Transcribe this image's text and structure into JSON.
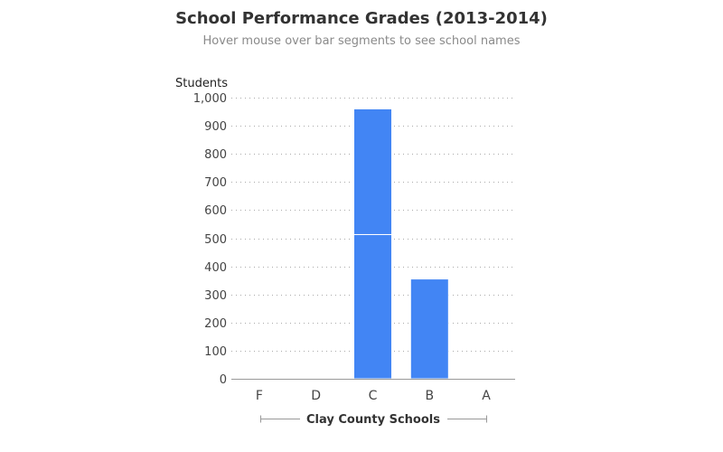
{
  "chart_data": {
    "type": "bar",
    "stacked": true,
    "title": "School Performance Grades (2013-2014)",
    "subtitle": "Hover mouse over bar segments to see school names",
    "ylabel": "Students",
    "xlabel": "Clay County Schools",
    "categories": [
      "F",
      "D",
      "C",
      "B",
      "A"
    ],
    "segments": [
      [],
      [],
      [
        513,
        447
      ],
      [
        355
      ],
      []
    ],
    "ylim": [
      0,
      1000
    ],
    "yticks": [
      0,
      100,
      200,
      300,
      400,
      500,
      600,
      700,
      800,
      900,
      1000
    ],
    "ytick_labels": [
      "0",
      "100",
      "200",
      "300",
      "400",
      "500",
      "600",
      "700",
      "800",
      "900",
      "1,000"
    ],
    "grid": true,
    "bar_color": "#4285f4",
    "grid_color": "#aaaaaa",
    "axis_color": "#999999"
  }
}
